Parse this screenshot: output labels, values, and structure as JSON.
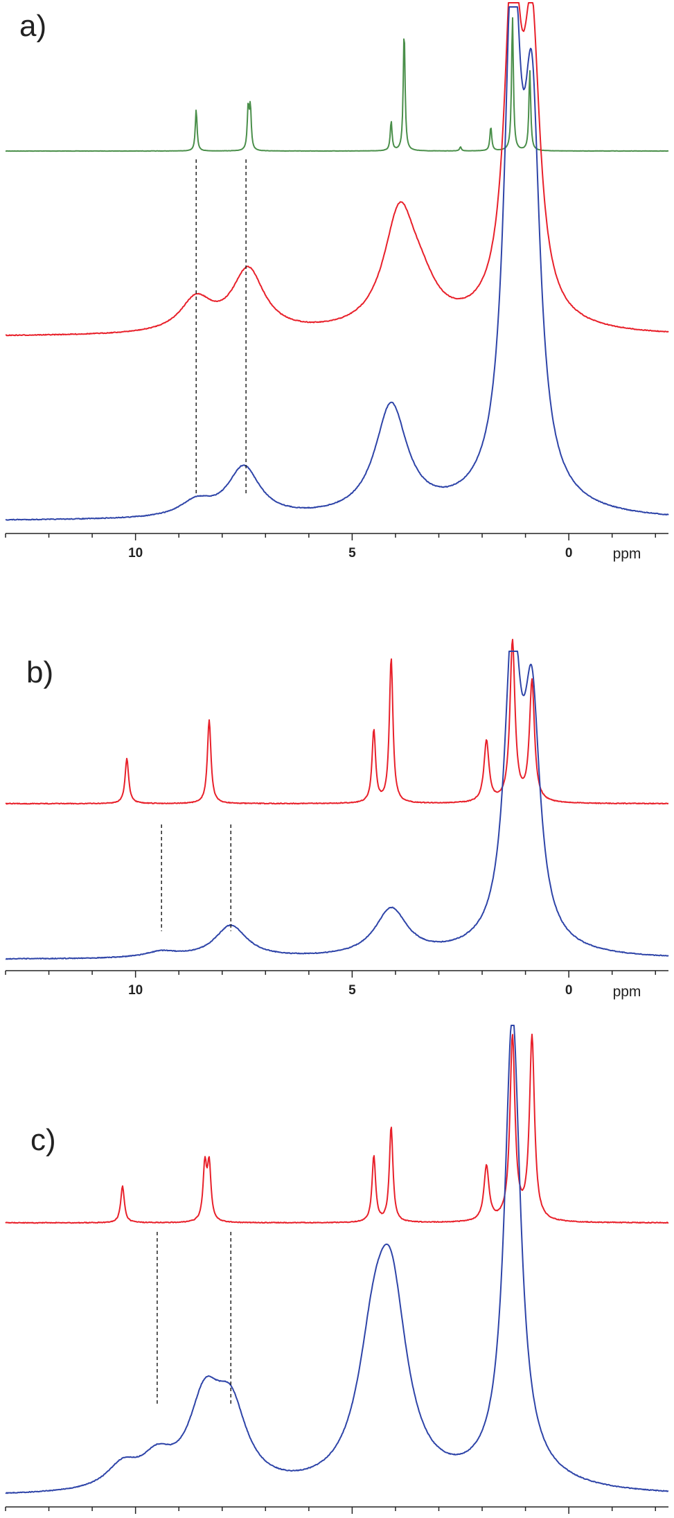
{
  "chart_data": [
    {
      "type": "line",
      "panel": "a)",
      "x_unit": "ppm",
      "xlim": [
        13,
        -2.3
      ],
      "x_reversed": true,
      "major_ticks": [
        10,
        5,
        0
      ],
      "series": [
        {
          "color": "#4a8f4a",
          "peaks": [
            {
              "ppm": 8.6,
              "height": 0.31
            },
            {
              "ppm": 7.4,
              "height": 0.31
            },
            {
              "ppm": 7.35,
              "height": 0.31
            },
            {
              "ppm": 4.1,
              "height": 0.22
            },
            {
              "ppm": 3.8,
              "height": 0.9
            },
            {
              "ppm": 2.5,
              "height": 0.03
            },
            {
              "ppm": 1.8,
              "height": 0.18
            },
            {
              "ppm": 1.3,
              "height": 1.0
            },
            {
              "ppm": 0.9,
              "height": 0.6
            }
          ]
        },
        {
          "color": "#e8202a",
          "peaks": [
            {
              "ppm": 8.6,
              "height": 0.1
            },
            {
              "ppm": 7.4,
              "height": 0.19
            },
            {
              "ppm": 3.9,
              "height": 0.35
            },
            {
              "ppm": 3.4,
              "height": 0.08
            },
            {
              "ppm": 1.3,
              "height": 1.0
            },
            {
              "ppm": 0.85,
              "height": 0.8
            }
          ]
        },
        {
          "color": "#2e44a8",
          "peaks": [
            {
              "ppm": 8.6,
              "height": 0.03
            },
            {
              "ppm": 7.5,
              "height": 0.1
            },
            {
              "ppm": 4.1,
              "height": 0.22
            },
            {
              "ppm": 1.3,
              "height": 1.0
            },
            {
              "ppm": 0.85,
              "height": 0.7
            }
          ]
        }
      ],
      "guides_ppm": [
        8.6,
        7.45
      ]
    },
    {
      "type": "line",
      "panel": "b)",
      "x_unit": "ppm",
      "xlim": [
        13,
        -2.3
      ],
      "x_reversed": true,
      "major_ticks": [
        10,
        5,
        0
      ],
      "series": [
        {
          "color": "#e8202a",
          "peaks": [
            {
              "ppm": 10.2,
              "height": 0.28
            },
            {
              "ppm": 8.3,
              "height": 0.52
            },
            {
              "ppm": 4.5,
              "height": 0.45
            },
            {
              "ppm": 4.1,
              "height": 0.9
            },
            {
              "ppm": 1.9,
              "height": 0.38
            },
            {
              "ppm": 1.3,
              "height": 1.0
            },
            {
              "ppm": 0.85,
              "height": 0.75
            }
          ]
        },
        {
          "color": "#2e44a8",
          "peaks": [
            {
              "ppm": 9.4,
              "height": 0.02
            },
            {
              "ppm": 7.8,
              "height": 0.11
            },
            {
              "ppm": 4.1,
              "height": 0.16
            },
            {
              "ppm": 1.3,
              "height": 1.0
            },
            {
              "ppm": 0.85,
              "height": 0.76
            }
          ]
        }
      ],
      "guides_ppm": [
        9.4,
        7.8
      ]
    },
    {
      "type": "line",
      "panel": "c)",
      "x_unit": "ppm",
      "xlim": [
        13,
        -2.3
      ],
      "x_reversed": true,
      "major_ticks": [
        10,
        5,
        0
      ],
      "series": [
        {
          "color": "#e8202a",
          "peaks": [
            {
              "ppm": 10.3,
              "height": 0.2
            },
            {
              "ppm": 8.4,
              "height": 0.3
            },
            {
              "ppm": 8.3,
              "height": 0.3
            },
            {
              "ppm": 4.5,
              "height": 0.36
            },
            {
              "ppm": 4.1,
              "height": 0.52
            },
            {
              "ppm": 1.9,
              "height": 0.3
            },
            {
              "ppm": 1.3,
              "height": 1.0
            },
            {
              "ppm": 0.85,
              "height": 1.0
            }
          ]
        },
        {
          "color": "#2e44a8",
          "peaks": [
            {
              "ppm": 10.3,
              "height": 0.05
            },
            {
              "ppm": 9.5,
              "height": 0.06
            },
            {
              "ppm": 8.4,
              "height": 0.18
            },
            {
              "ppm": 7.8,
              "height": 0.16
            },
            {
              "ppm": 4.5,
              "height": 0.25
            },
            {
              "ppm": 4.1,
              "height": 0.38
            },
            {
              "ppm": 1.3,
              "height": 1.0
            }
          ]
        }
      ],
      "guides_ppm": [
        9.5,
        7.8
      ]
    }
  ]
}
